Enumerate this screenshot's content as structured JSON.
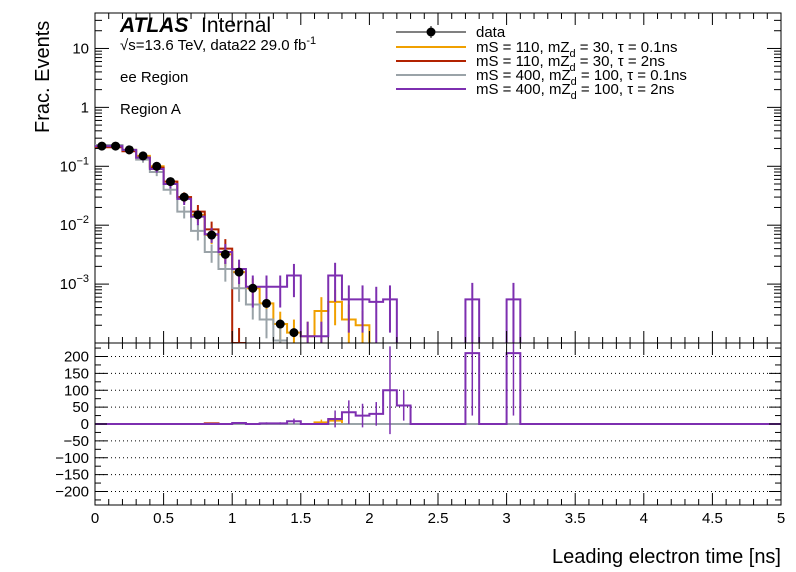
{
  "annotations": {
    "atlas": "ATLAS",
    "internal": "Internal",
    "energy": "√s=13.6 TeV, data22 29.0 fb",
    "energy_sup": "-1",
    "region1": "ee Region",
    "region2": "Region A"
  },
  "chart_data": [
    {
      "type": "line",
      "panel": "main",
      "xlabel": "Leading electron time [ns]",
      "ylabel": "Frac. Events",
      "xlim": [
        0,
        5
      ],
      "ylim": [
        0.0001,
        40
      ],
      "yscale": "log",
      "yticks": [
        {
          "v": 0.001,
          "m": "10",
          "e": "−3"
        },
        {
          "v": 0.01,
          "m": "10",
          "e": "−2"
        },
        {
          "v": 0.1,
          "m": "10",
          "e": "−1"
        },
        {
          "v": 1,
          "m": "1",
          "e": ""
        },
        {
          "v": 10,
          "m": "10",
          "e": ""
        }
      ],
      "bin_edges": [
        0,
        0.1,
        0.2,
        0.3,
        0.4,
        0.5,
        0.6,
        0.7,
        0.8,
        0.9,
        1.0,
        1.1,
        1.2,
        1.3,
        1.4,
        1.5,
        1.6,
        1.7,
        1.8,
        1.9,
        2.0,
        2.1,
        2.2,
        2.3,
        2.4,
        2.5,
        2.6,
        2.7,
        2.8,
        2.9,
        3.0,
        3.1,
        3.2,
        3.3,
        3.4,
        3.5,
        3.6,
        3.7,
        3.8,
        3.9,
        4.0,
        4.1,
        4.2,
        4.3,
        4.4,
        4.5,
        4.6,
        4.7,
        4.8,
        4.9,
        5.0
      ],
      "legend": [
        "data",
        "mS = 110, mZ_d = 30, τ = 0.1ns",
        "mS = 110, mZ_d = 30, τ = 2ns",
        "mS = 400, mZ_d = 100, τ = 0.1ns",
        "mS = 400, mZ_d = 100, τ = 2ns"
      ],
      "data_points": {
        "name": "data",
        "x": [
          0.05,
          0.15,
          0.25,
          0.35,
          0.45,
          0.55,
          0.65,
          0.75,
          0.85,
          0.95,
          1.05,
          1.15,
          1.25,
          1.35,
          1.45
        ],
        "y": [
          0.22,
          0.22,
          0.19,
          0.15,
          0.1,
          0.055,
          0.03,
          0.015,
          0.0068,
          0.0032,
          0.0016,
          0.00085,
          0.00047,
          0.00021,
          0.00015
        ]
      },
      "series": [
        {
          "name": "mS = 110, mZ_d = 30, τ = 0.1ns",
          "color": "#f0a000",
          "values": [
            0.22,
            0.22,
            0.19,
            0.15,
            0.1,
            0.055,
            0.03,
            0.015,
            0.0068,
            0.0032,
            0.0016,
            0.00085,
            0.00047,
            0.00021,
            0.00015,
            0.00013,
            0.00035,
            0.0005,
            0.00025,
            0.0002,
            0,
            0,
            0,
            0,
            0,
            0,
            0,
            0,
            0,
            0,
            0,
            0,
            0,
            0,
            0,
            0,
            0,
            0,
            0,
            0,
            0,
            0,
            0,
            0,
            0,
            0,
            0,
            0,
            0,
            0
          ],
          "errors": [
            0.02,
            0.02,
            0.02,
            0.015,
            0.012,
            0.008,
            0.006,
            0.004,
            0.002,
            0.0012,
            0.0007,
            0.0004,
            0.00025,
            0.00013,
            0.0001,
            0.0001,
            0.00025,
            0.0003,
            0.0002,
            0.00015,
            0,
            0,
            0,
            0,
            0,
            0,
            0,
            0,
            0,
            0,
            0,
            0,
            0,
            0,
            0,
            0,
            0,
            0,
            0,
            0,
            0,
            0,
            0,
            0,
            0,
            0,
            0,
            0,
            0,
            0
          ]
        },
        {
          "name": "mS = 110, mZ_d = 30, τ = 2ns",
          "color": "#b22200",
          "values": [
            0.21,
            0.21,
            0.18,
            0.14,
            0.095,
            0.055,
            0.03,
            0.017,
            0.0085,
            0.004,
            0.0001,
            0,
            0,
            0,
            0,
            0,
            0,
            0,
            0,
            0,
            0,
            0,
            0,
            0,
            0,
            0,
            0,
            0,
            0,
            0,
            0,
            0,
            0,
            0,
            0,
            0,
            0,
            0,
            0,
            0,
            0,
            0,
            0,
            0,
            0,
            0,
            0,
            0,
            0,
            0
          ],
          "errors": [
            0.02,
            0.02,
            0.02,
            0.015,
            0.012,
            0.008,
            0.006,
            0.005,
            0.003,
            0.0018,
            8e-05,
            0,
            0,
            0,
            0,
            0,
            0,
            0,
            0,
            0,
            0,
            0,
            0,
            0,
            0,
            0,
            0,
            0,
            0,
            0,
            0,
            0,
            0,
            0,
            0,
            0,
            0,
            0,
            0,
            0,
            0,
            0,
            0,
            0,
            0,
            0,
            0,
            0,
            0,
            0
          ],
          "bins_shown": 11
        },
        {
          "name": "mS = 400, mZ_d = 100, τ = 0.1ns",
          "color": "#9aa3a8",
          "values": [
            0.23,
            0.23,
            0.19,
            0.13,
            0.08,
            0.04,
            0.017,
            0.008,
            0.0035,
            0.0018,
            0.00085,
            0.00045,
            0.00025,
            0.00011,
            0,
            0,
            0,
            0,
            0,
            0,
            0,
            0,
            0,
            0,
            0,
            0,
            0,
            0,
            0,
            0,
            0,
            0,
            0,
            0,
            0,
            0,
            0,
            0,
            0,
            0,
            0,
            0,
            0,
            0,
            0,
            0,
            0,
            0,
            0,
            0
          ],
          "errors": [
            0.02,
            0.02,
            0.02,
            0.015,
            0.012,
            0.007,
            0.004,
            0.0025,
            0.0012,
            0.0007,
            0.00035,
            0.0002,
            0.00013,
            7e-05,
            0,
            0,
            0,
            0,
            0,
            0,
            0,
            0,
            0,
            0,
            0,
            0,
            0,
            0,
            0,
            0,
            0,
            0,
            0,
            0,
            0,
            0,
            0,
            0,
            0,
            0,
            0,
            0,
            0,
            0,
            0,
            0,
            0,
            0,
            0,
            0
          ],
          "bins_shown": 14
        },
        {
          "name": "mS = 400, mZ_d = 100, τ = 2ns",
          "color": "#7d2fb0",
          "values": [
            0.22,
            0.22,
            0.19,
            0.14,
            0.09,
            0.05,
            0.028,
            0.014,
            0.007,
            0.0035,
            0.0018,
            0.0009,
            0.0009,
            0.0009,
            0.0014,
            0.00013,
            0.00013,
            0.0014,
            0.00055,
            0.00055,
            0.0005,
            0.00055,
            0,
            0,
            0,
            0,
            0,
            0.00055,
            0,
            0,
            0.00055,
            0,
            0,
            0,
            0,
            0,
            0,
            0,
            0,
            0,
            0,
            0,
            0,
            0,
            0,
            0,
            0,
            0,
            0,
            0
          ],
          "errors": [
            0.02,
            0.02,
            0.02,
            0.015,
            0.012,
            0.008,
            0.006,
            0.004,
            0.002,
            0.0013,
            0.0008,
            0.0005,
            0.0005,
            0.0005,
            0.0008,
            0.0001,
            0.0001,
            0.0009,
            0.0004,
            0.0004,
            0.0004,
            0.0004,
            0,
            0,
            0,
            0,
            0,
            0.0005,
            0,
            0,
            0.0005,
            0,
            0,
            0,
            0,
            0,
            0,
            0,
            0,
            0,
            0,
            0,
            0,
            0,
            0,
            0,
            0,
            0,
            0,
            0
          ]
        }
      ]
    },
    {
      "type": "line",
      "panel": "ratio",
      "xlabel": "Leading electron time [ns]",
      "xlim": [
        0,
        5
      ],
      "ylim": [
        -240,
        240
      ],
      "yticks": [
        -200,
        -150,
        -100,
        -50,
        0,
        50,
        100,
        150,
        200
      ],
      "xticks": [
        0,
        0.5,
        1,
        1.5,
        2,
        2.5,
        3,
        3.5,
        4,
        4.5,
        5
      ],
      "xtick_labels": [
        "0",
        "0.5",
        "1",
        "1.5",
        "2",
        "2.5",
        "3",
        "3.5",
        "4",
        "4.5",
        "5"
      ],
      "series": [
        {
          "name": "mS = 110, mZ_d = 30, τ = 0.1ns",
          "color": "#f0a000",
          "values": [
            0,
            0,
            0,
            0,
            0,
            0,
            0,
            0,
            0,
            0,
            0,
            0,
            0,
            0,
            0,
            0,
            5,
            10,
            0,
            0,
            0,
            0,
            0,
            0,
            0,
            0,
            0,
            0,
            0,
            0,
            0,
            0,
            0,
            0,
            0,
            0,
            0,
            0,
            0,
            0,
            0,
            0,
            0,
            0,
            0,
            0,
            0,
            0,
            0,
            0
          ],
          "errors": [
            0,
            0,
            0,
            0,
            0,
            0,
            0,
            0,
            0,
            0,
            0,
            0,
            0,
            0,
            0,
            0,
            8,
            12,
            0,
            0,
            0,
            0,
            0,
            0,
            0,
            0,
            0,
            0,
            0,
            0,
            0,
            0,
            0,
            0,
            0,
            0,
            0,
            0,
            0,
            0,
            0,
            0,
            0,
            0,
            0,
            0,
            0,
            0,
            0,
            0
          ]
        },
        {
          "name": "mS = 110, mZ_d = 30, τ = 2ns",
          "color": "#b22200",
          "values": [
            0,
            0,
            0,
            0,
            0,
            0,
            0,
            0,
            2,
            0,
            0,
            0,
            0,
            0,
            0,
            0,
            0,
            0,
            0,
            0,
            0,
            0,
            0,
            0,
            0,
            0,
            0,
            0,
            0,
            0,
            0,
            0,
            0,
            0,
            0,
            0,
            0,
            0,
            0,
            0,
            0,
            0,
            0,
            0,
            0,
            0,
            0,
            0,
            0,
            0
          ],
          "errors": [
            0,
            0,
            0,
            0,
            0,
            0,
            0,
            0,
            2,
            0,
            0,
            0,
            0,
            0,
            0,
            0,
            0,
            0,
            0,
            0,
            0,
            0,
            0,
            0,
            0,
            0,
            0,
            0,
            0,
            0,
            0,
            0,
            0,
            0,
            0,
            0,
            0,
            0,
            0,
            0,
            0,
            0,
            0,
            0,
            0,
            0,
            0,
            0,
            0,
            0
          ]
        },
        {
          "name": "mS = 400, mZ_d = 100, τ = 0.1ns",
          "color": "#9aa3a8",
          "values": [
            0,
            0,
            0,
            0,
            0,
            0,
            0,
            0,
            0,
            0,
            0,
            0,
            0,
            0,
            0,
            0,
            0,
            0,
            0,
            0,
            0,
            0,
            0,
            0,
            0,
            0,
            0,
            0,
            0,
            0,
            0,
            0,
            0,
            0,
            0,
            0,
            0,
            0,
            0,
            0,
            0,
            0,
            0,
            0,
            0,
            0,
            0,
            0,
            0,
            0
          ],
          "errors": [
            0,
            0,
            0,
            0,
            0,
            0,
            0,
            0,
            0,
            0,
            0,
            0,
            0,
            0,
            0,
            0,
            0,
            0,
            0,
            0,
            0,
            0,
            0,
            0,
            0,
            0,
            0,
            0,
            0,
            0,
            0,
            0,
            0,
            0,
            0,
            0,
            0,
            0,
            0,
            0,
            0,
            0,
            0,
            0,
            0,
            0,
            0,
            0,
            0,
            0
          ]
        },
        {
          "name": "mS = 400, mZ_d = 100, τ = 2ns",
          "color": "#7d2fb0",
          "values": [
            0,
            0,
            0,
            0,
            0,
            0,
            0,
            0,
            0,
            0,
            3,
            0,
            2,
            2,
            8,
            0,
            0,
            15,
            35,
            25,
            30,
            100,
            55,
            0,
            0,
            0,
            0,
            210,
            0,
            0,
            210,
            0,
            0,
            0,
            0,
            0,
            0,
            0,
            0,
            0,
            0,
            0,
            0,
            0,
            0,
            0,
            0,
            0,
            0,
            0
          ],
          "errors": [
            0,
            0,
            0,
            0,
            0,
            0,
            0,
            0,
            0,
            0,
            3,
            0,
            3,
            3,
            8,
            0,
            0,
            25,
            35,
            35,
            35,
            130,
            45,
            0,
            0,
            0,
            0,
            185,
            0,
            0,
            185,
            0,
            0,
            0,
            0,
            0,
            0,
            0,
            0,
            0,
            0,
            0,
            0,
            0,
            0,
            0,
            0,
            0,
            0,
            0
          ]
        }
      ]
    }
  ]
}
